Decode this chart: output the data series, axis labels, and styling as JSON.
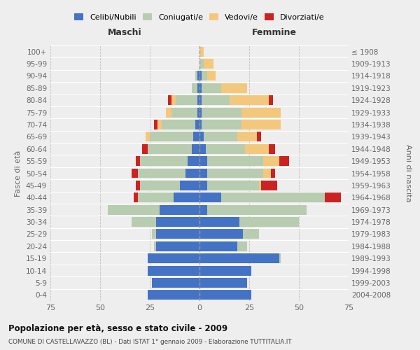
{
  "age_groups": [
    "100+",
    "95-99",
    "90-94",
    "85-89",
    "80-84",
    "75-79",
    "70-74",
    "65-69",
    "60-64",
    "55-59",
    "50-54",
    "45-49",
    "40-44",
    "35-39",
    "30-34",
    "25-29",
    "20-24",
    "15-19",
    "10-14",
    "5-9",
    "0-4"
  ],
  "birth_years": [
    "≤ 1908",
    "1909-1913",
    "1914-1918",
    "1919-1923",
    "1924-1928",
    "1929-1933",
    "1934-1938",
    "1939-1943",
    "1944-1948",
    "1949-1953",
    "1954-1958",
    "1959-1963",
    "1964-1968",
    "1969-1973",
    "1974-1978",
    "1979-1983",
    "1984-1988",
    "1989-1993",
    "1994-1998",
    "1999-2003",
    "2004-2008"
  ],
  "colors": {
    "celibi": "#4472C4",
    "coniugati": "#B8CCB0",
    "vedovi": "#F4C87C",
    "divorziati": "#CC2222"
  },
  "maschi_celibi": [
    0,
    0,
    1,
    1,
    1,
    1,
    2,
    3,
    4,
    6,
    7,
    10,
    13,
    20,
    22,
    22,
    22,
    26,
    26,
    24,
    26
  ],
  "maschi_coniugati": [
    0,
    0,
    1,
    3,
    11,
    13,
    17,
    22,
    22,
    24,
    24,
    20,
    18,
    26,
    12,
    2,
    1,
    0,
    0,
    0,
    0
  ],
  "maschi_vedovi": [
    0,
    0,
    0,
    0,
    2,
    3,
    2,
    2,
    0,
    0,
    0,
    0,
    0,
    0,
    0,
    0,
    0,
    0,
    0,
    0,
    0
  ],
  "maschi_divorziati": [
    0,
    0,
    0,
    0,
    2,
    0,
    2,
    0,
    3,
    2,
    3,
    2,
    2,
    0,
    0,
    0,
    0,
    0,
    0,
    0,
    0
  ],
  "femmine_celibi": [
    0,
    0,
    1,
    1,
    1,
    1,
    1,
    2,
    3,
    4,
    4,
    4,
    11,
    4,
    20,
    22,
    19,
    40,
    26,
    24,
    26
  ],
  "femmine_coniugati": [
    0,
    2,
    3,
    10,
    14,
    20,
    20,
    17,
    20,
    28,
    28,
    26,
    52,
    50,
    30,
    8,
    5,
    1,
    0,
    0,
    0
  ],
  "femmine_vedovi": [
    2,
    5,
    4,
    13,
    20,
    20,
    20,
    10,
    12,
    8,
    4,
    1,
    0,
    0,
    0,
    0,
    0,
    0,
    0,
    0,
    0
  ],
  "femmine_divorziati": [
    0,
    0,
    0,
    0,
    2,
    0,
    0,
    2,
    3,
    5,
    2,
    8,
    8,
    0,
    0,
    0,
    0,
    0,
    0,
    0,
    0
  ],
  "xlim": 75,
  "title": "Popolazione per età, sesso e stato civile - 2009",
  "subtitle": "COMUNE DI CASTELLAVAZZO (BL) - Dati ISTAT 1° gennaio 2009 - Elaborazione TUTTITALIA.IT",
  "ylabel_left": "Fasce di età",
  "ylabel_right": "Anni di nascita",
  "xlabel_maschi": "Maschi",
  "xlabel_femmine": "Femmine",
  "legend_labels": [
    "Celibi/Nubili",
    "Coniugati/e",
    "Vedovi/e",
    "Divorziati/e"
  ],
  "bg_color": "#eeeeee",
  "bar_height": 0.8
}
